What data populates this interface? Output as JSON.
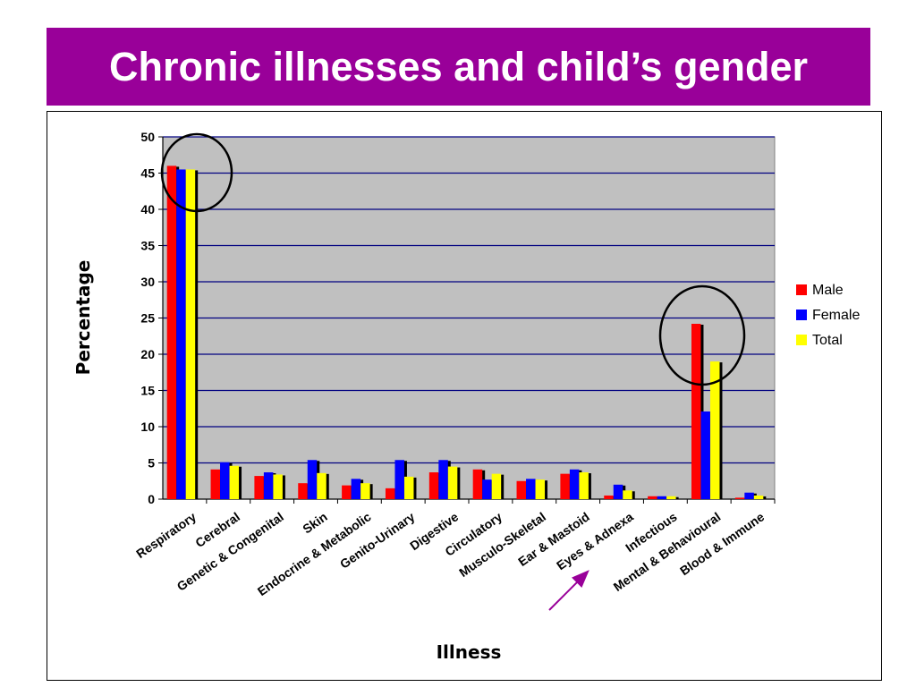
{
  "slide": {
    "title": "Chronic illnesses and child’s gender",
    "banner_color": "#990099"
  },
  "chart_data": {
    "type": "bar",
    "title": "",
    "xlabel": "Illness",
    "ylabel": "Percentage",
    "ylim": [
      0,
      50
    ],
    "yticks": [
      0,
      5,
      10,
      15,
      20,
      25,
      30,
      35,
      40,
      45,
      50
    ],
    "grid": true,
    "legend_position": "right",
    "plot_background": "#c0c0c0",
    "gridline_color": "#000080",
    "categories": [
      "Respiratory",
      "Cerebral",
      "Genetic & Congenital",
      "Skin",
      "Endocrine & Metabolic",
      "Genito-Urinary",
      "Digestive",
      "Circulatory",
      "Musculo-Skeletal",
      "Ear & Mastoid",
      "Eyes & Adnexa",
      "Infectious",
      "Mental & Behavioural",
      "Blood & Immune"
    ],
    "series": [
      {
        "name": "Male",
        "color": "#ff0000",
        "values": [
          46.0,
          4.1,
          3.2,
          2.2,
          1.9,
          1.5,
          3.7,
          4.1,
          2.5,
          3.5,
          0.5,
          0.4,
          24.2,
          0.2
        ]
      },
      {
        "name": "Female",
        "color": "#0000ff",
        "values": [
          45.5,
          5.1,
          3.7,
          5.4,
          2.8,
          5.4,
          5.4,
          2.7,
          2.8,
          4.1,
          2.0,
          0.4,
          12.1,
          0.9
        ]
      },
      {
        "name": "Total",
        "color": "#ffff00",
        "values": [
          45.5,
          4.6,
          3.4,
          3.6,
          2.2,
          3.1,
          4.5,
          3.5,
          2.7,
          3.7,
          1.2,
          0.4,
          19.0,
          0.5
        ]
      }
    ]
  }
}
